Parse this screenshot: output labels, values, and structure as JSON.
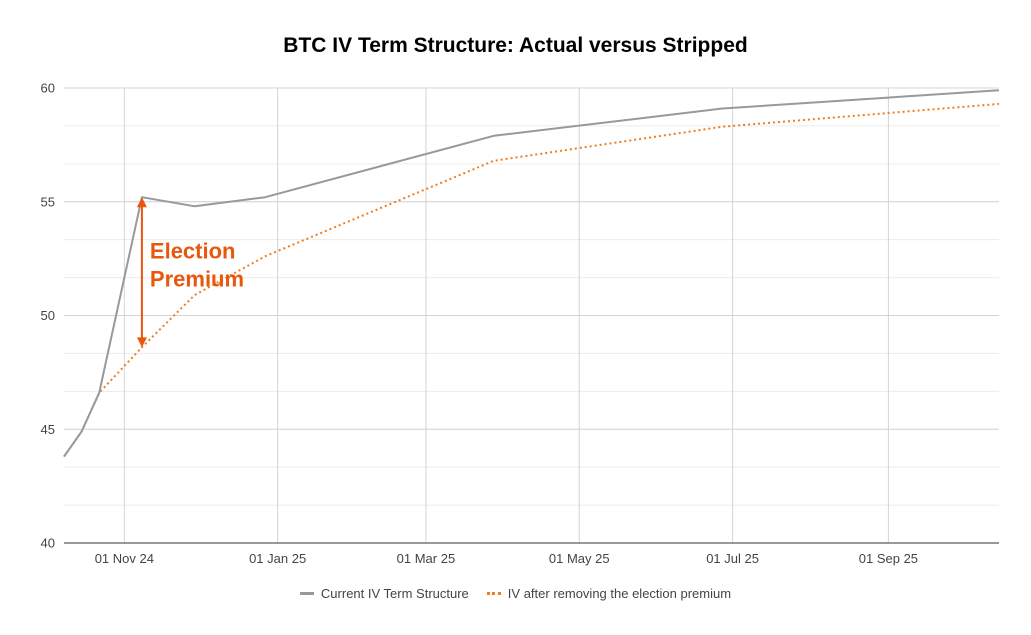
{
  "chart_data": {
    "type": "line",
    "title": "BTC IV Term Structure: Actual versus Stripped",
    "xlabel": "",
    "ylabel": "",
    "ylim": [
      40,
      60
    ],
    "xlim": [
      "2024-10-08",
      "2025-10-15"
    ],
    "y_ticks": [
      40,
      45,
      50,
      55,
      60
    ],
    "x_ticks": [
      {
        "date": "2024-11-01",
        "label": "01 Nov 24"
      },
      {
        "date": "2025-01-01",
        "label": "01 Jan 25"
      },
      {
        "date": "2025-03-01",
        "label": "01 Mar 25"
      },
      {
        "date": "2025-05-01",
        "label": "01 May 25"
      },
      {
        "date": "2025-07-01",
        "label": "01 Jul 25"
      },
      {
        "date": "2025-09-01",
        "label": "01 Sep 25"
      }
    ],
    "grid": true,
    "legend_position": "bottom",
    "series": [
      {
        "name": "Current IV Term Structure",
        "color": "#999999",
        "style": "solid",
        "points": [
          {
            "x": "2024-10-08",
            "y": 43.8
          },
          {
            "x": "2024-10-15",
            "y": 44.9
          },
          {
            "x": "2024-10-22",
            "y": 46.6
          },
          {
            "x": "2024-11-08",
            "y": 55.2
          },
          {
            "x": "2024-11-29",
            "y": 54.8
          },
          {
            "x": "2024-12-27",
            "y": 55.2
          },
          {
            "x": "2025-03-28",
            "y": 57.9
          },
          {
            "x": "2025-06-27",
            "y": 59.1
          },
          {
            "x": "2025-10-15",
            "y": 59.9
          }
        ]
      },
      {
        "name": "IV after removing the election premium",
        "color": "#f07c1b",
        "style": "dotted",
        "points": [
          {
            "x": "2024-10-08",
            "y": 43.8
          },
          {
            "x": "2024-10-15",
            "y": 44.9
          },
          {
            "x": "2024-10-22",
            "y": 46.6
          },
          {
            "x": "2024-11-08",
            "y": 48.6
          },
          {
            "x": "2024-11-29",
            "y": 50.9
          },
          {
            "x": "2024-12-27",
            "y": 52.6
          },
          {
            "x": "2025-03-28",
            "y": 56.8
          },
          {
            "x": "2025-06-27",
            "y": 58.3
          },
          {
            "x": "2025-10-15",
            "y": 59.3
          }
        ]
      }
    ],
    "annotations": [
      {
        "text_lines": [
          "Election",
          "Premium"
        ],
        "color": "#e8580c",
        "arrow_x": "2024-11-08",
        "arrow_y": [
          48.6,
          55.2
        ]
      }
    ]
  }
}
